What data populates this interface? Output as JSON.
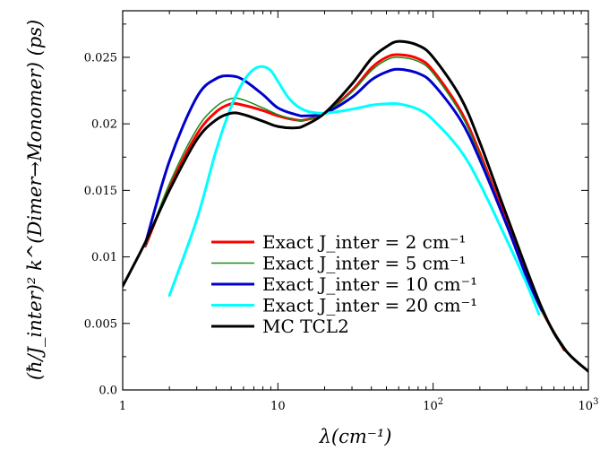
{
  "chart_data": {
    "type": "line",
    "title": "",
    "xlabel": "λ(cm⁻¹)",
    "ylabel": "(ħ/J_inter)² k^(Dimer→Monomer)   (ps)",
    "xscale": "log",
    "xlim": [
      1,
      1000
    ],
    "ylim": [
      0,
      0.0285
    ],
    "x_ticks": [
      {
        "value": 1,
        "label": "1"
      },
      {
        "value": 10,
        "label": "10"
      },
      {
        "value": 100,
        "label": "10²"
      },
      {
        "value": 1000,
        "label": "10³"
      }
    ],
    "y_ticks": [
      {
        "value": 0,
        "label": "0.0"
      },
      {
        "value": 0.005,
        "label": "0.005"
      },
      {
        "value": 0.01,
        "label": "0.01"
      },
      {
        "value": 0.015,
        "label": "0.015"
      },
      {
        "value": 0.02,
        "label": "0.02"
      },
      {
        "value": 0.025,
        "label": "0.025"
      }
    ],
    "grid": false,
    "legend_position": "bottom-center",
    "series": [
      {
        "name": "Exact J_inter = 2 cm⁻¹",
        "color": "#ff0000",
        "width": 3,
        "x": [
          1.4,
          2,
          3,
          4,
          5,
          6,
          8,
          10,
          13,
          15,
          20,
          30,
          40,
          50,
          60,
          80,
          100,
          150,
          200,
          300,
          400,
          500,
          700
        ],
        "y": [
          0.0108,
          0.0152,
          0.0192,
          0.0209,
          0.0215,
          0.0214,
          0.021,
          0.0206,
          0.0203,
          0.0203,
          0.0208,
          0.0225,
          0.0242,
          0.025,
          0.0252,
          0.0249,
          0.024,
          0.021,
          0.0178,
          0.0125,
          0.0086,
          0.006,
          0.003
        ]
      },
      {
        "name": "Exact J_inter = 5 cm⁻¹",
        "color": "#1a8a1a",
        "width": 1.5,
        "x": [
          1.4,
          2,
          3,
          4,
          5,
          6,
          8,
          10,
          13,
          15,
          20,
          30,
          40,
          50,
          60,
          80,
          100,
          150,
          200,
          300,
          400,
          500,
          750
        ],
        "y": [
          0.0108,
          0.0155,
          0.0196,
          0.0213,
          0.0219,
          0.0218,
          0.0212,
          0.0207,
          0.0203,
          0.0203,
          0.0208,
          0.0224,
          0.024,
          0.0248,
          0.025,
          0.0247,
          0.0238,
          0.0208,
          0.0176,
          0.0124,
          0.0085,
          0.0059,
          0.0027
        ]
      },
      {
        "name": "Exact J_inter = 10 cm⁻¹",
        "color": "#0000cc",
        "width": 3,
        "x": [
          1.4,
          2,
          3,
          4,
          5,
          6,
          8,
          10,
          13,
          15,
          20,
          30,
          40,
          50,
          60,
          80,
          100,
          150,
          200,
          300,
          400,
          500
        ],
        "y": [
          0.011,
          0.0172,
          0.022,
          0.0234,
          0.0236,
          0.0233,
          0.0222,
          0.0212,
          0.0207,
          0.0206,
          0.0208,
          0.022,
          0.0233,
          0.0239,
          0.0241,
          0.0238,
          0.023,
          0.0203,
          0.0173,
          0.0123,
          0.0085,
          0.006
        ]
      },
      {
        "name": "Exact J_inter = 20 cm⁻¹",
        "color": "#00ffff",
        "width": 3,
        "x": [
          2,
          3,
          4,
          5,
          6,
          7,
          8,
          9,
          10,
          12,
          15,
          20,
          30,
          40,
          50,
          60,
          80,
          100,
          150,
          200,
          300,
          400,
          480
        ],
        "y": [
          0.0071,
          0.0128,
          0.018,
          0.0213,
          0.0232,
          0.0241,
          0.0243,
          0.024,
          0.0232,
          0.0218,
          0.021,
          0.0208,
          0.0211,
          0.0214,
          0.0215,
          0.0215,
          0.0211,
          0.0203,
          0.018,
          0.0155,
          0.0112,
          0.008,
          0.0057
        ]
      },
      {
        "name": "MC TCL2",
        "color": "#000000",
        "width": 3,
        "x": [
          1,
          1.4,
          2,
          3,
          4,
          5,
          6,
          8,
          10,
          13,
          15,
          20,
          30,
          40,
          50,
          60,
          80,
          100,
          150,
          200,
          300,
          500,
          700,
          1000
        ],
        "y": [
          0.0078,
          0.0111,
          0.015,
          0.0188,
          0.0203,
          0.0208,
          0.0207,
          0.0202,
          0.0198,
          0.0197,
          0.0199,
          0.0208,
          0.023,
          0.0249,
          0.0258,
          0.0262,
          0.0259,
          0.025,
          0.022,
          0.0186,
          0.013,
          0.0062,
          0.0031,
          0.0014
        ]
      }
    ]
  }
}
